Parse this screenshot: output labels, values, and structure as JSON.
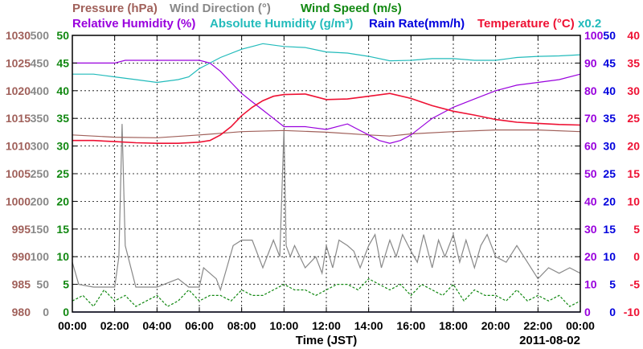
{
  "chart_data": {
    "type": "line",
    "xlabel": "Time (JST)",
    "date": "2011-08-02",
    "x_ticks": [
      "00:00",
      "02:00",
      "04:00",
      "06:00",
      "08:00",
      "10:00",
      "12:00",
      "14:00",
      "16:00",
      "18:00",
      "20:00",
      "22:00",
      "00:00"
    ],
    "xlim_hours": [
      0,
      24
    ],
    "grid": true,
    "legend": [
      {
        "text": "Pressure (hPa)",
        "color": "#a0605a"
      },
      {
        "text": "Wind Direction (°)",
        "color": "#888888"
      },
      {
        "text": "Wind Speed (m/s)",
        "color": "#118811"
      },
      {
        "text": "Relative Humidity (%)",
        "color": "#9900dd"
      },
      {
        "text": "Absolute Humidity (g/m³)",
        "color": "#22bbbb"
      },
      {
        "text": "Rain Rate(mm/h)",
        "color": "#0000dd"
      },
      {
        "text": "Temperature (°C)",
        "color": "#ee1133"
      },
      {
        "text": "x0.2",
        "color": "#22bbbb"
      }
    ],
    "axes": {
      "pressure": {
        "ticks": [
          "1030",
          "1025",
          "1020",
          "1015",
          "1010",
          "1005",
          "1000",
          "995",
          "990",
          "985",
          "980"
        ],
        "ylim": [
          980,
          1030
        ],
        "color": "#a0605a"
      },
      "wind_dir": {
        "ticks": [
          "500",
          "450",
          "400",
          "350",
          "300",
          "250",
          "200",
          "150",
          "100",
          "50",
          "0"
        ],
        "ylim": [
          0,
          500
        ],
        "color": "#888888"
      },
      "wind_speed": {
        "ticks": [
          "50",
          "45",
          "40",
          "35",
          "30",
          "25",
          "20",
          "15",
          "10",
          "5",
          "0"
        ],
        "ylim": [
          0,
          50
        ],
        "color": "#118811"
      },
      "rh": {
        "ticks": [
          "100",
          "90",
          "80",
          "70",
          "60",
          "50",
          "40",
          "30",
          "20",
          "10",
          "0"
        ],
        "ylim": [
          0,
          100
        ],
        "color": "#9900dd"
      },
      "rain": {
        "ticks": [
          "50",
          "45",
          "40",
          "35",
          "30",
          "25",
          "20",
          "15",
          "10",
          "5",
          "0"
        ],
        "ylim": [
          0,
          50
        ],
        "color": "#0000dd"
      },
      "temp": {
        "ticks": [
          "40",
          "35",
          "30",
          "25",
          "20",
          "15",
          "10",
          "5",
          "0",
          "-5",
          "-10"
        ],
        "ylim": [
          -10,
          40
        ],
        "color": "#ee1133"
      }
    },
    "series": [
      {
        "name": "Pressure (hPa)",
        "color": "#a0605a",
        "x": [
          0,
          2,
          4,
          6,
          7,
          8,
          10,
          12,
          14,
          15,
          16,
          18,
          20,
          22,
          24
        ],
        "y": [
          1012.0,
          1011.6,
          1011.5,
          1012.0,
          1012.3,
          1012.6,
          1012.8,
          1012.5,
          1012.0,
          1011.8,
          1012.2,
          1012.6,
          1012.9,
          1012.9,
          1012.6
        ]
      },
      {
        "name": "Absolute Humidity (g/m³)",
        "color": "#22bbbb",
        "x": [
          0,
          1,
          2,
          3,
          4,
          5,
          5.5,
          6,
          7,
          8,
          8.5,
          9,
          10,
          11,
          12,
          13,
          14,
          15,
          16,
          17,
          18,
          19,
          20,
          21,
          22,
          23,
          24
        ],
        "y": [
          43,
          43,
          42.5,
          42,
          41.5,
          42,
          42.5,
          44,
          46,
          47.5,
          48,
          48.5,
          48,
          47.8,
          47,
          46.8,
          46.2,
          45.4,
          45.5,
          45.8,
          45.8,
          45.5,
          45.5,
          46,
          46.2,
          46.3,
          46.5
        ]
      },
      {
        "name": "Relative Humidity (%)",
        "color": "#9900dd",
        "x": [
          0,
          1,
          2,
          2.5,
          3,
          4,
          5,
          6,
          6.5,
          7,
          7.5,
          8,
          8.5,
          9,
          9.5,
          10,
          11,
          12,
          13,
          13.5,
          14,
          14.5,
          15,
          15.5,
          16,
          17,
          18,
          19,
          20,
          21,
          22,
          23,
          24
        ],
        "y": [
          90,
          90,
          90,
          91,
          91,
          91,
          91,
          91,
          90,
          87,
          83,
          79,
          76,
          73,
          70,
          67,
          67,
          66,
          68,
          66,
          64,
          62,
          61,
          62,
          64,
          70,
          74,
          77,
          80,
          82,
          83,
          84,
          86
        ]
      },
      {
        "name": "Temperature (°C)",
        "color": "#ee1133",
        "x": [
          0,
          1,
          2,
          3,
          4,
          5,
          6,
          6.5,
          7,
          7.5,
          8,
          8.5,
          9,
          9.5,
          10,
          11,
          12,
          13,
          14,
          15,
          16,
          17,
          18,
          19,
          20,
          21,
          22,
          23,
          24
        ],
        "y": [
          21,
          21,
          20.8,
          20.6,
          20.5,
          20.5,
          20.7,
          21,
          22,
          23.5,
          25.5,
          27,
          28.2,
          29,
          29.3,
          29.4,
          28.4,
          28.5,
          29,
          29.5,
          28.6,
          27.3,
          26.3,
          25.6,
          24.8,
          24.3,
          24.1,
          23.9,
          23.8
        ]
      },
      {
        "name": "Wind Direction (°)",
        "color": "#888888",
        "x": [
          0,
          0.3,
          1,
          2,
          2.2,
          2.35,
          2.5,
          3,
          4,
          5,
          5.5,
          6,
          6.2,
          6.8,
          7,
          7.3,
          7.6,
          8,
          8.5,
          9,
          9.5,
          9.8,
          10,
          10.1,
          10.3,
          10.5,
          11,
          11.5,
          11.8,
          12,
          12.3,
          12.6,
          13,
          13.3,
          13.6,
          14,
          14.3,
          14.6,
          15,
          15.3,
          15.6,
          16,
          16.3,
          16.6,
          17,
          17.3,
          17.6,
          18,
          18.3,
          18.6,
          19,
          19.3,
          19.6,
          20,
          20.5,
          21,
          21.5,
          22,
          22.5,
          23,
          23.5,
          24
        ],
        "y": [
          90,
          50,
          45,
          45,
          100,
          340,
          120,
          45,
          45,
          60,
          45,
          45,
          80,
          60,
          40,
          80,
          120,
          130,
          130,
          80,
          130,
          100,
          330,
          120,
          100,
          120,
          80,
          100,
          70,
          120,
          80,
          130,
          120,
          110,
          80,
          120,
          140,
          80,
          130,
          100,
          140,
          110,
          90,
          140,
          80,
          130,
          100,
          140,
          90,
          130,
          80,
          120,
          140,
          100,
          90,
          120,
          90,
          60,
          80,
          70,
          80,
          70
        ]
      },
      {
        "name": "Wind Speed (m/s)",
        "color": "#118811",
        "x": [
          0,
          0.5,
          1,
          1.5,
          2,
          2.5,
          3,
          3.5,
          4,
          4.5,
          5,
          5.5,
          6,
          6.5,
          7,
          7.5,
          8,
          8.5,
          9,
          9.5,
          10,
          10.5,
          11,
          11.5,
          12,
          12.5,
          13,
          13.5,
          14,
          14.5,
          15,
          15.5,
          16,
          16.5,
          17,
          17.5,
          18,
          18.5,
          19,
          19.5,
          20,
          20.5,
          21,
          21.5,
          22,
          22.5,
          23,
          23.5,
          24
        ],
        "y": [
          2,
          3,
          1,
          4,
          2,
          3,
          1,
          2,
          3,
          1,
          2,
          4,
          2,
          3,
          3,
          2,
          4,
          3,
          3,
          4,
          5,
          4,
          4,
          3,
          4,
          5,
          5,
          4,
          6,
          5,
          4,
          5,
          3,
          5,
          4,
          3,
          5,
          2,
          4,
          3,
          3,
          2,
          4,
          2,
          3,
          2,
          3,
          1,
          2
        ]
      },
      {
        "name": "Rain Rate(mm/h)",
        "color": "#0000dd",
        "x": [
          0,
          24
        ],
        "y": [
          0,
          0
        ]
      }
    ]
  }
}
